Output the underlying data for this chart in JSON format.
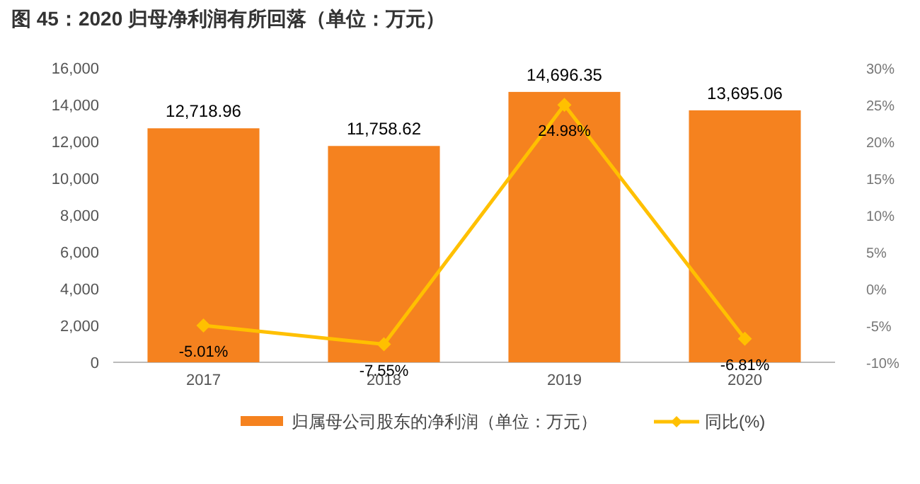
{
  "chart_data": {
    "type": "bar",
    "title": "图 45：2020 归母净利润有所回落（单位：万元）",
    "categories": [
      "2017",
      "2018",
      "2019",
      "2020"
    ],
    "series": [
      {
        "name": "归属母公司股东的净利润（单位：万元）",
        "type": "bar",
        "color": "#f5821f",
        "values": [
          12718.96,
          11758.62,
          14696.35,
          13695.06
        ],
        "value_labels": [
          "12,718.96",
          "11,758.62",
          "14,696.35",
          "13,695.06"
        ]
      },
      {
        "name": "同比(%)",
        "type": "line",
        "axis": "y2",
        "color": "#ffc000",
        "marker": "diamond",
        "values": [
          -5.01,
          -7.55,
          24.98,
          -6.81
        ],
        "value_labels": [
          "-5.01%",
          "-7.55%",
          "24.98%",
          "-6.81%"
        ]
      }
    ],
    "ylim": [
      0,
      16000
    ],
    "yticks": [
      {
        "value": 0,
        "label": "0"
      },
      {
        "value": 2000,
        "label": "2,000"
      },
      {
        "value": 4000,
        "label": "4,000"
      },
      {
        "value": 6000,
        "label": "6,000"
      },
      {
        "value": 8000,
        "label": "8,000"
      },
      {
        "value": 10000,
        "label": "10,000"
      },
      {
        "value": 12000,
        "label": "12,000"
      },
      {
        "value": 14000,
        "label": "14,000"
      },
      {
        "value": 16000,
        "label": "16,000"
      }
    ],
    "y2lim": [
      -10,
      30
    ],
    "y2ticks": [
      {
        "value": -10,
        "label": "-10%"
      },
      {
        "value": -5,
        "label": "-5%"
      },
      {
        "value": 0,
        "label": "0%"
      },
      {
        "value": 5,
        "label": "5%"
      },
      {
        "value": 10,
        "label": "10%"
      },
      {
        "value": 15,
        "label": "15%"
      },
      {
        "value": 20,
        "label": "20%"
      },
      {
        "value": 25,
        "label": "25%"
      },
      {
        "value": 30,
        "label": "30%"
      }
    ],
    "legend": "bottom",
    "grid": false
  }
}
